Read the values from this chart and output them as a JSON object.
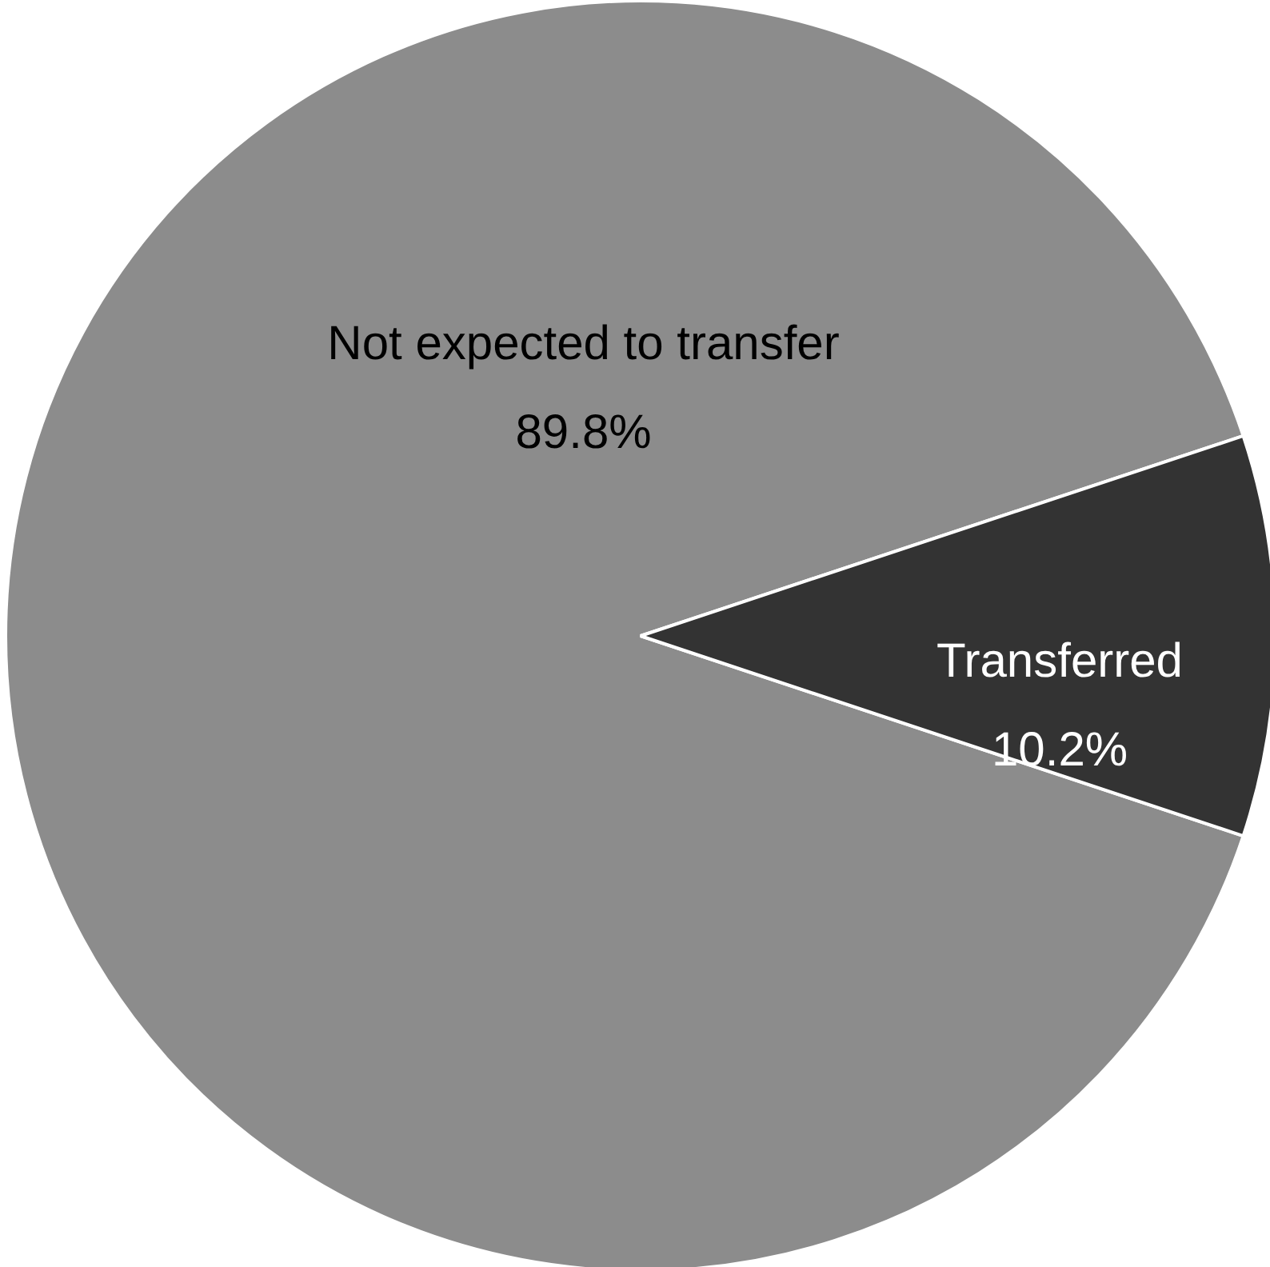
{
  "chart_data": {
    "type": "pie",
    "categories": [
      "Not expected to transfer",
      "Transferred"
    ],
    "values": [
      89.8,
      10.2
    ],
    "colors": [
      "#8c8c8c",
      "#333333"
    ],
    "value_labels": [
      "89.8%",
      "10.2%"
    ]
  }
}
